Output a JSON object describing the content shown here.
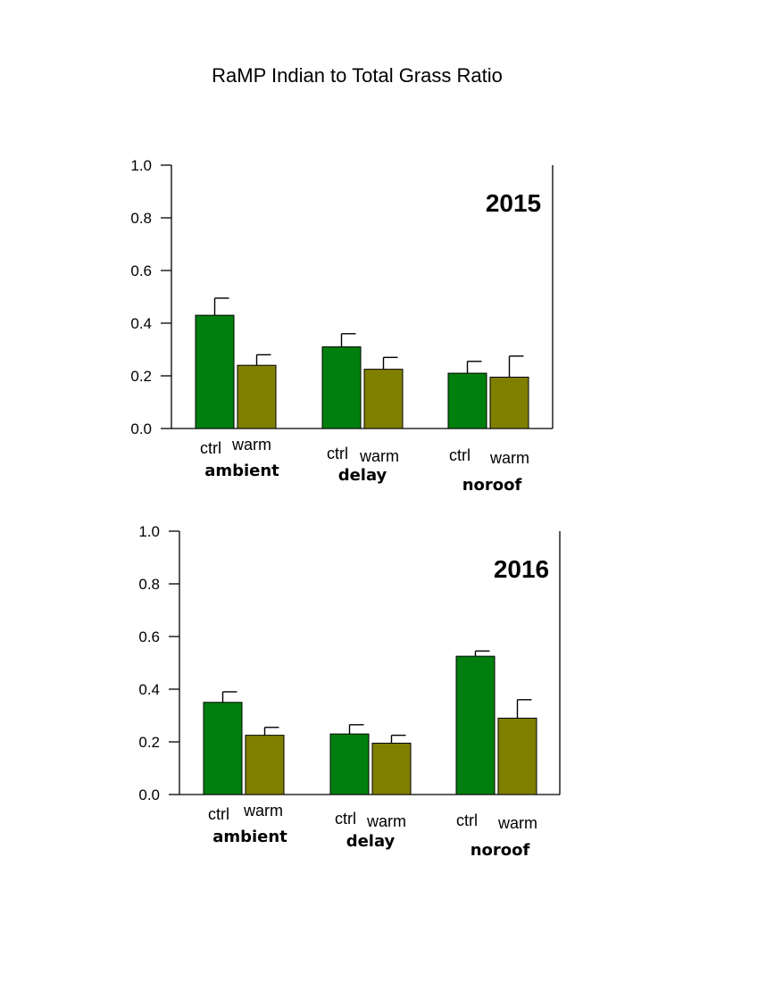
{
  "title": "RaMP Indian to Total Grass Ratio",
  "colors": {
    "ctrl": "#007f0e",
    "warm": "#7f7f00",
    "axis": "#000000"
  },
  "chart_data": [
    {
      "type": "bar",
      "panel_label": "2015",
      "groups": [
        "ambient",
        "delay",
        "noroof"
      ],
      "series": [
        {
          "name": "ctrl",
          "values": [
            0.43,
            0.31,
            0.21
          ],
          "errors": [
            0.065,
            0.05,
            0.045
          ]
        },
        {
          "name": "warm",
          "values": [
            0.24,
            0.225,
            0.195
          ],
          "errors": [
            0.04,
            0.045,
            0.08
          ]
        }
      ],
      "ylim": [
        0.0,
        1.0
      ],
      "yticks": [
        "0.0",
        "0.2",
        "0.4",
        "0.6",
        "0.8",
        "1.0"
      ],
      "grid": false
    },
    {
      "type": "bar",
      "panel_label": "2016",
      "groups": [
        "ambient",
        "delay",
        "noroof"
      ],
      "series": [
        {
          "name": "ctrl",
          "values": [
            0.35,
            0.23,
            0.525
          ],
          "errors": [
            0.04,
            0.035,
            0.02
          ]
        },
        {
          "name": "warm",
          "values": [
            0.225,
            0.195,
            0.29
          ],
          "errors": [
            0.03,
            0.03,
            0.07
          ]
        }
      ],
      "ylim": [
        0.0,
        1.0
      ],
      "yticks": [
        "0.0",
        "0.2",
        "0.4",
        "0.6",
        "0.8",
        "1.0"
      ],
      "grid": false
    }
  ]
}
